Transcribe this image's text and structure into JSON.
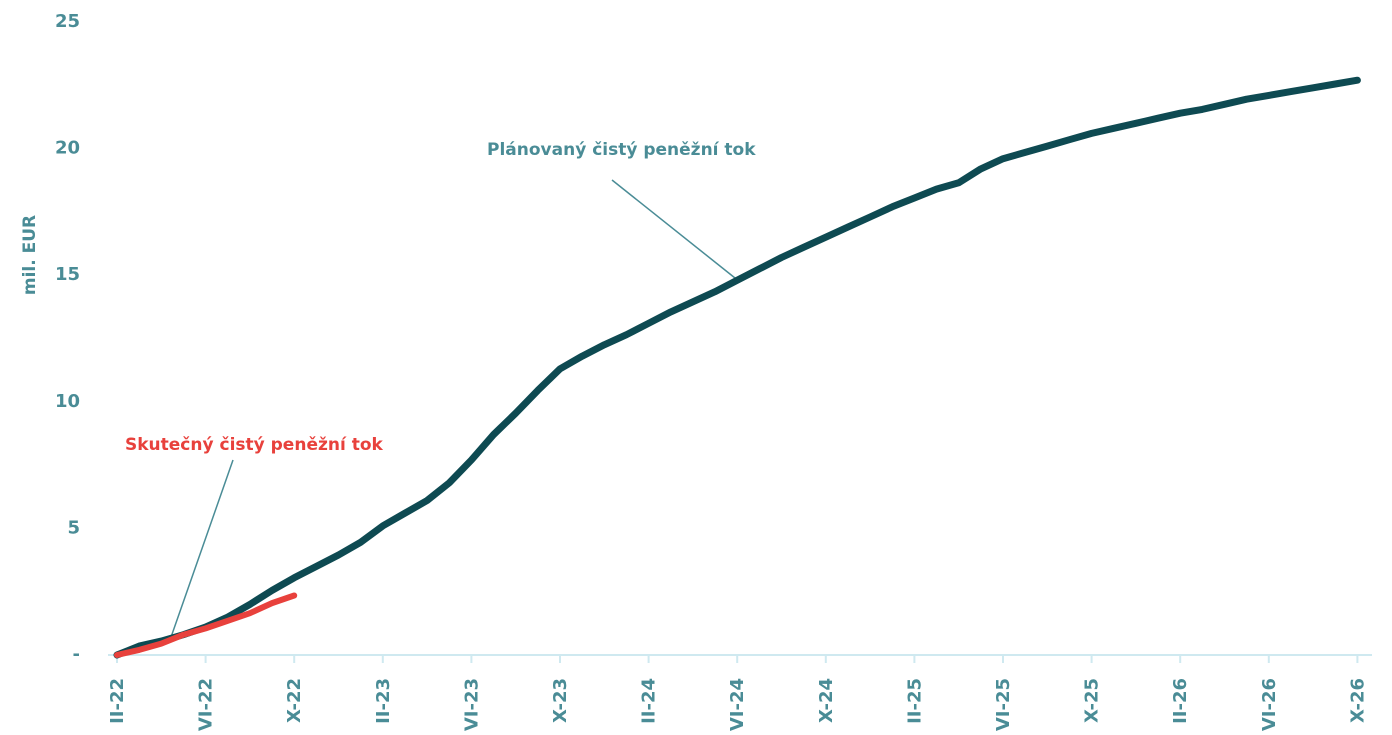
{
  "chart_data": {
    "type": "line",
    "y_label": "mil. EUR",
    "categories": [
      "II-22",
      null,
      null,
      null,
      "VI-22",
      null,
      null,
      null,
      "X-22",
      null,
      null,
      null,
      "II-23",
      null,
      null,
      null,
      "VI-23",
      null,
      null,
      null,
      "X-23",
      null,
      null,
      null,
      "II-24",
      null,
      null,
      null,
      "VI-24",
      null,
      null,
      null,
      "X-24",
      null,
      null,
      null,
      "II-25",
      null,
      null,
      null,
      "VI-25",
      null,
      null,
      null,
      "X-25",
      null,
      null,
      null,
      "II-26",
      null,
      null,
      null,
      "VI-26",
      null,
      null,
      null,
      "X-26"
    ],
    "series": [
      {
        "name": "Plánovaný čistý peněžní tok",
        "color": "#0e4a52",
        "values": [
          0,
          0.35,
          0.55,
          0.8,
          1.1,
          1.5,
          2.0,
          2.55,
          3.05,
          3.5,
          3.95,
          4.45,
          5.1,
          5.6,
          6.1,
          6.8,
          7.7,
          8.7,
          9.55,
          10.45,
          11.3,
          11.8,
          12.25,
          12.65,
          13.1,
          13.55,
          13.95,
          14.35,
          14.8,
          15.25,
          15.7,
          16.1,
          16.5,
          16.9,
          17.3,
          17.7,
          18.05,
          18.4,
          18.65,
          19.2,
          19.6,
          19.85,
          20.1,
          20.35,
          20.6,
          20.8,
          21.0,
          21.2,
          21.4,
          21.55,
          21.75,
          21.95,
          22.1,
          22.25,
          22.4,
          22.55,
          22.7
        ]
      },
      {
        "name": "Skutečný čistý peněžní tok",
        "color": "#e8413c",
        "values": [
          0,
          0.2,
          0.45,
          0.8,
          1.05,
          1.35,
          1.65,
          2.05,
          2.35,
          null,
          null,
          null,
          null,
          null,
          null,
          null,
          null,
          null,
          null,
          null,
          null,
          null,
          null,
          null,
          null,
          null,
          null,
          null,
          null,
          null,
          null,
          null,
          null,
          null,
          null,
          null,
          null,
          null,
          null,
          null,
          null,
          null,
          null,
          null,
          null,
          null,
          null,
          null,
          null,
          null,
          null,
          null,
          null,
          null,
          null,
          null,
          null
        ]
      }
    ],
    "ylim": [
      0,
      25
    ],
    "yticks": [
      {
        "value": 0,
        "label": "-"
      },
      5,
      10,
      15,
      20,
      25
    ]
  }
}
